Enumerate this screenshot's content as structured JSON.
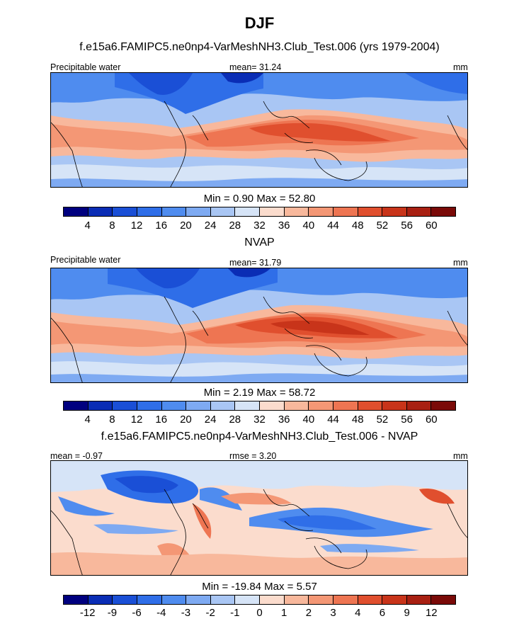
{
  "figure": {
    "title": "DJF"
  },
  "panels": [
    {
      "header": "f.e15a6.FAMIPC5.ne0np4-VarMeshNH3.Club_Test.006 (yrs 1979-2004)",
      "left_label": "Precipitable water",
      "center_label": "mean=  31.24",
      "right_label": "mm",
      "minmax": "Min =   0.90 Max =  52.80",
      "colorbar_labels": [
        "4",
        "8",
        "12",
        "16",
        "20",
        "24",
        "28",
        "32",
        "36",
        "40",
        "44",
        "48",
        "52",
        "56",
        "60"
      ]
    },
    {
      "header": "NVAP",
      "left_label": "Precipitable water",
      "center_label": "mean=  31.79",
      "right_label": "mm",
      "minmax": "Min =   2.19 Max =  58.72",
      "colorbar_labels": [
        "4",
        "8",
        "12",
        "16",
        "20",
        "24",
        "28",
        "32",
        "36",
        "40",
        "44",
        "48",
        "52",
        "56",
        "60"
      ]
    },
    {
      "header": "f.e15a6.FAMIPC5.ne0np4-VarMeshNH3.Club_Test.006 - NVAP",
      "left_label": "mean =  -0.97",
      "center_label": "rmse =   3.20",
      "right_label": "mm",
      "minmax": "Min = -19.84 Max =   5.57",
      "colorbar_labels": [
        "-12",
        "-9",
        "-6",
        "-4",
        "-3",
        "-2",
        "-1",
        "0",
        "1",
        "2",
        "3",
        "4",
        "6",
        "9",
        "12"
      ]
    }
  ],
  "colorbar_colors": [
    "#00007f",
    "#0a2db5",
    "#1a4fd6",
    "#2f6ee8",
    "#4f8cef",
    "#7eaaf2",
    "#a9c6f4",
    "#d6e4f7",
    "#fbdccd",
    "#f8b89c",
    "#f49775",
    "#ee7552",
    "#e04f2e",
    "#c8341a",
    "#a82012",
    "#7a0a08"
  ],
  "chart_data": [
    {
      "type": "heatmap",
      "title": "f.e15a6.FAMIPC5.ne0np4-VarMeshNH3.Club_Test.006 (yrs 1979-2004)",
      "variable": "Precipitable water",
      "units": "mm",
      "mean": 31.24,
      "min": 0.9,
      "max": 52.8,
      "contour_levels": [
        4,
        8,
        12,
        16,
        20,
        24,
        28,
        32,
        36,
        40,
        44,
        48,
        52,
        56,
        60
      ]
    },
    {
      "type": "heatmap",
      "title": "NVAP",
      "variable": "Precipitable water",
      "units": "mm",
      "mean": 31.79,
      "min": 2.19,
      "max": 58.72,
      "contour_levels": [
        4,
        8,
        12,
        16,
        20,
        24,
        28,
        32,
        36,
        40,
        44,
        48,
        52,
        56,
        60
      ]
    },
    {
      "type": "heatmap",
      "title": "f.e15a6.FAMIPC5.ne0np4-VarMeshNH3.Club_Test.006 - NVAP",
      "units": "mm",
      "mean": -0.97,
      "rmse": 3.2,
      "min": -19.84,
      "max": 5.57,
      "contour_levels": [
        -12,
        -9,
        -6,
        -4,
        -3,
        -2,
        -1,
        0,
        1,
        2,
        3,
        4,
        6,
        9,
        12
      ]
    }
  ]
}
